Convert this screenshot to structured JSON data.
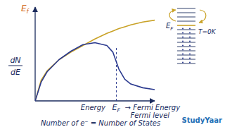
{
  "chart_data": {
    "type": "line",
    "x_label": "Energy",
    "y_label": {
      "numerator": "dN",
      "denominator": "dE"
    },
    "x": [
      0,
      0.5,
      1,
      2,
      3,
      4,
      5,
      6,
      6.5,
      7,
      7.5,
      8,
      9,
      10
    ],
    "series": [
      {
        "color": "#c9a227",
        "values": [
          0,
          2.2,
          3.2,
          4.4,
          5.2,
          5.9,
          6.6,
          7.2,
          7.45,
          7.7,
          7.9,
          8.1,
          8.4,
          8.6
        ]
      },
      {
        "color": "#2b3a8f",
        "values": [
          0,
          2.0,
          3.1,
          4.4,
          5.3,
          6.0,
          6.2,
          5.9,
          5.2,
          3.4,
          2.3,
          1.8,
          1.4,
          1.2
        ]
      }
    ],
    "xlim": [
      0,
      10
    ],
    "ylim": [
      0,
      10
    ],
    "tick_labels": false,
    "top_label": {
      "symbol": "E",
      "subscript": "f"
    },
    "fermi_energy": {
      "x": 6.8,
      "symbol": "E",
      "subscript": "F",
      "text": "→ Fermi Energy",
      "text2": "Fermi level"
    },
    "annotations": [
      "Number of e⁻ = Number of States"
    ],
    "level_diagram": {
      "symbol": "E",
      "subscript": "F",
      "temperature": "T=0K"
    },
    "watermark": "StudyYaar"
  }
}
